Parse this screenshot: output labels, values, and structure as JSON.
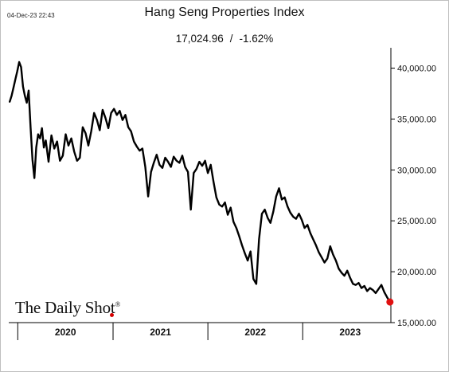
{
  "header": {
    "timestamp": "04-Dec-23 22:43",
    "title": "Hang Seng Properties Index",
    "last_value": "17,024.96",
    "separator": "/",
    "change_pct": "-1.62%"
  },
  "branding": {
    "name": "The Daily Shot",
    "mark": "®"
  },
  "colors": {
    "line": "#000000",
    "endpoint": "#e01010",
    "axis": "#000000",
    "brand_dot": "#d40000"
  },
  "chart_data": {
    "type": "line",
    "title": "Hang Seng Properties Index",
    "xlabel": "",
    "ylabel": "",
    "x_range": [
      2019.9,
      2023.93
    ],
    "ylim": [
      15000,
      42000
    ],
    "y_ticks": [
      15000,
      20000,
      25000,
      30000,
      35000,
      40000
    ],
    "y_tick_labels": [
      "15,000.00",
      "20,000.00",
      "25,000.00",
      "30,000.00",
      "35,000.00",
      "40,000.00"
    ],
    "x_tick_positions": [
      2020,
      2021,
      2022,
      2023
    ],
    "x_category_labels": [
      "2020",
      "2021",
      "2022",
      "2023"
    ],
    "grid": false,
    "legend": "none",
    "y_axis_side": "right",
    "series": [
      {
        "x": [
          2019.91,
          2019.93,
          2019.95,
          2019.97,
          2019.99,
          2020.01,
          2020.03,
          2020.05,
          2020.07,
          2020.09,
          2020.11,
          2020.13,
          2020.15,
          2020.17,
          2020.19,
          2020.21,
          2020.23,
          2020.25,
          2020.27,
          2020.29,
          2020.32,
          2020.35,
          2020.38,
          2020.41,
          2020.44,
          2020.47,
          2020.5,
          2020.53,
          2020.56,
          2020.59,
          2020.62,
          2020.65,
          2020.68,
          2020.71,
          2020.74,
          2020.77,
          2020.8,
          2020.83,
          2020.86,
          2020.89,
          2020.92,
          2020.95,
          2020.98,
          2021.01,
          2021.04,
          2021.07,
          2021.1,
          2021.13,
          2021.16,
          2021.19,
          2021.22,
          2021.25,
          2021.28,
          2021.31,
          2021.34,
          2021.37,
          2021.4,
          2021.43,
          2021.46,
          2021.49,
          2021.52,
          2021.55,
          2021.58,
          2021.61,
          2021.64,
          2021.67,
          2021.7,
          2021.73,
          2021.76,
          2021.79,
          2021.82,
          2021.85,
          2021.88,
          2021.91,
          2021.94,
          2021.97,
          2022.0,
          2022.03,
          2022.06,
          2022.09,
          2022.12,
          2022.15,
          2022.18,
          2022.21,
          2022.24,
          2022.27,
          2022.3,
          2022.33,
          2022.36,
          2022.39,
          2022.42,
          2022.45,
          2022.48,
          2022.51,
          2022.54,
          2022.57,
          2022.6,
          2022.63,
          2022.66,
          2022.69,
          2022.72,
          2022.75,
          2022.78,
          2022.81,
          2022.84,
          2022.87,
          2022.9,
          2022.93,
          2022.96,
          2022.99,
          2023.02,
          2023.05,
          2023.08,
          2023.11,
          2023.14,
          2023.17,
          2023.2,
          2023.23,
          2023.26,
          2023.29,
          2023.32,
          2023.35,
          2023.38,
          2023.41,
          2023.44,
          2023.47,
          2023.5,
          2023.53,
          2023.56,
          2023.59,
          2023.62,
          2023.65,
          2023.68,
          2023.71,
          2023.74,
          2023.77,
          2023.8,
          2023.83,
          2023.86,
          2023.89,
          2023.92
        ],
        "values": [
          36700,
          37300,
          38100,
          38900,
          39700,
          40600,
          40100,
          38200,
          37300,
          36600,
          37800,
          34200,
          31000,
          29200,
          32200,
          33500,
          33100,
          34100,
          32200,
          32900,
          30800,
          33400,
          32100,
          32800,
          30900,
          31400,
          33500,
          32400,
          33100,
          31800,
          30900,
          31200,
          34200,
          33600,
          32400,
          33800,
          35600,
          34900,
          33900,
          35900,
          35100,
          34100,
          35600,
          36000,
          35400,
          35800,
          34900,
          35400,
          34200,
          33800,
          32800,
          32300,
          31900,
          32100,
          30300,
          27400,
          29800,
          30700,
          31500,
          30500,
          30200,
          31200,
          30800,
          30300,
          31300,
          30900,
          30700,
          31400,
          30300,
          29800,
          26100,
          29700,
          30100,
          30800,
          30400,
          30900,
          29700,
          30500,
          28800,
          27300,
          26600,
          26400,
          26800,
          25600,
          26300,
          24900,
          24300,
          23500,
          22600,
          21800,
          21100,
          22000,
          19300,
          18800,
          23200,
          25700,
          26100,
          25300,
          24800,
          25900,
          27400,
          28200,
          27100,
          27300,
          26400,
          25800,
          25400,
          25200,
          25700,
          25100,
          24300,
          24600,
          23800,
          23200,
          22600,
          21900,
          21400,
          20900,
          21300,
          22500,
          21700,
          21100,
          20300,
          19900,
          19600,
          20100,
          19400,
          18800,
          18700,
          18900,
          18400,
          18600,
          18100,
          18400,
          18200,
          17900,
          18300,
          18700,
          18000,
          17500,
          17025
        ],
        "end_value": 17024.96
      }
    ]
  }
}
